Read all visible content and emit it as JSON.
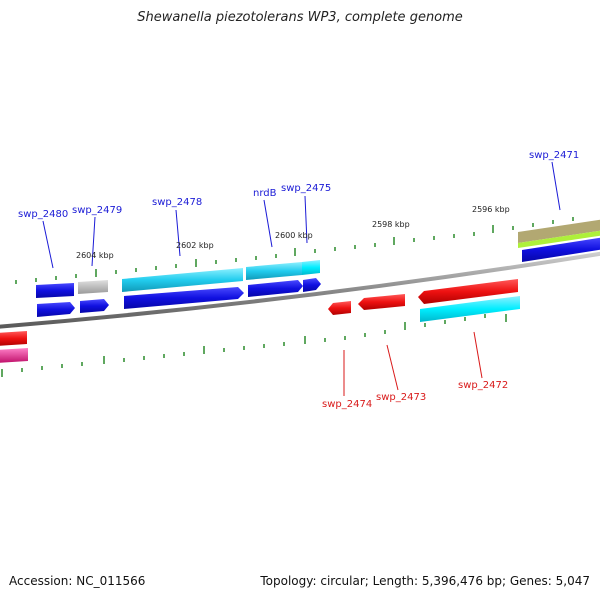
{
  "title": "Shewanella piezotolerans WP3, complete genome",
  "footer": {
    "accession": "Accession: NC_011566",
    "summary": "Topology: circular; Length: 5,396,476 bp; Genes: 5,047"
  },
  "ruler_labels": [
    "2604 kbp",
    "2602 kbp",
    "2600 kbp",
    "2598 kbp",
    "2596 kbp"
  ],
  "top_gene_labels": [
    "swp_2480",
    "swp_2479",
    "swp_2478",
    "nrdB",
    "swp_2475",
    "swp_2471"
  ],
  "bottom_gene_labels": [
    "swp_2474",
    "swp_2473",
    "swp_2472"
  ],
  "colors": {
    "forward_gene": "#1010e0",
    "reverse_gene": "#ee1111",
    "cog_cyan": "#22ccee",
    "cog_gray": "#b5b5b5",
    "cog_magenta": "#ee1e90",
    "cog_lime": "#aef03a",
    "cog_khaki": "#b2a872",
    "backbone": "#8a8a8a",
    "tick": "#2a8a2a"
  }
}
